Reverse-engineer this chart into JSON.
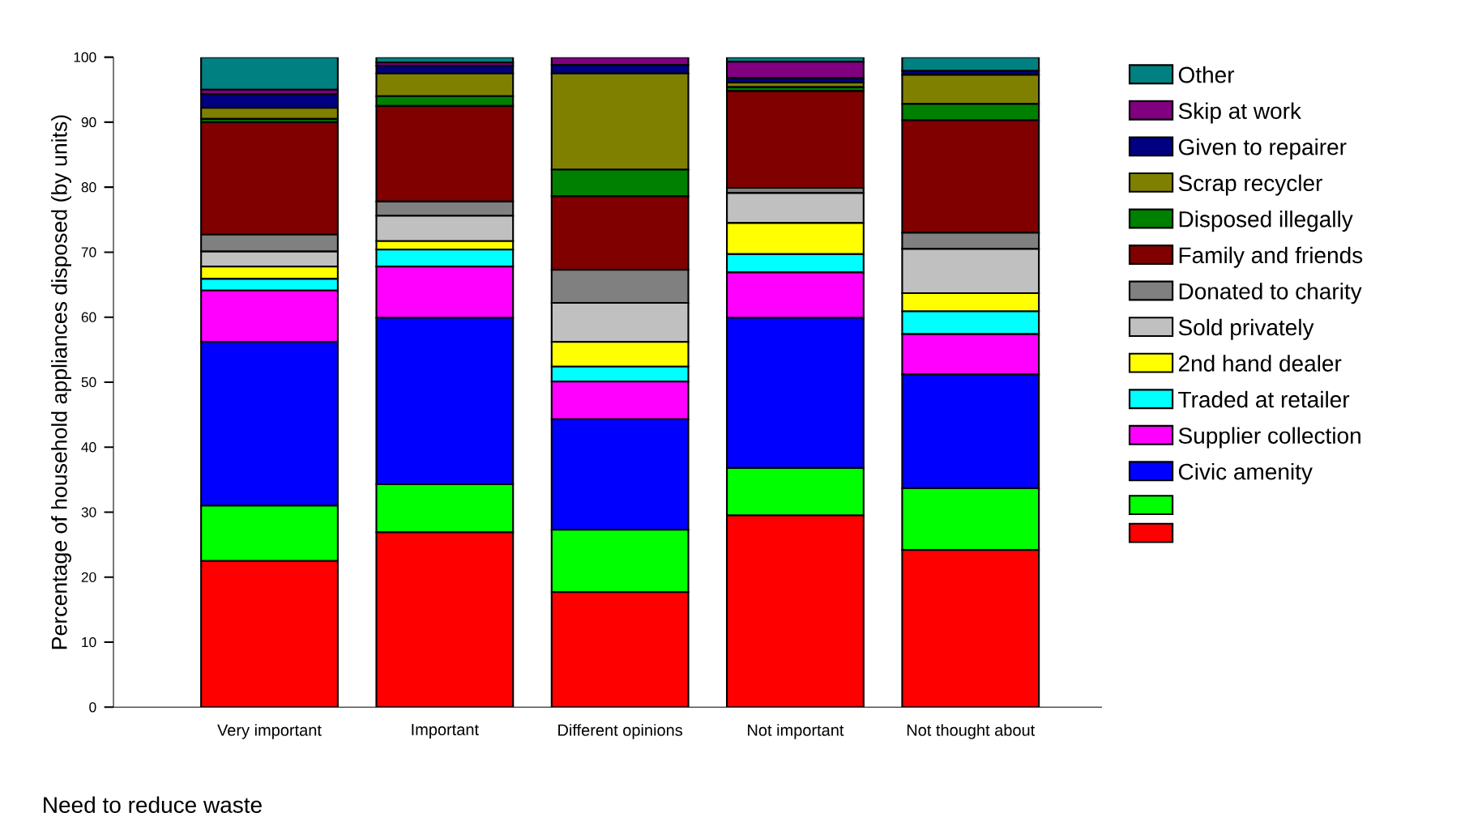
{
  "chart_data": {
    "type": "bar",
    "stacked": true,
    "xlabel": "Need to reduce waste",
    "ylabel": "Percentage of household appliances disposed (by units)",
    "categories": [
      "Very important",
      "Important",
      "Different opinions",
      "Not important",
      "Not thought about"
    ],
    "ylim": [
      0,
      100
    ],
    "yticks": [
      0,
      10,
      20,
      30,
      40,
      50,
      60,
      70,
      80,
      90,
      100
    ],
    "grid": false,
    "legend": "right",
    "series": [
      {
        "color": "#ff0000",
        "values": [
          22.5,
          26.9,
          17.7,
          29.5,
          24.2
        ]
      },
      {
        "color": "#00ff00",
        "values": [
          8.5,
          7.4,
          9.6,
          7.3,
          9.5
        ]
      },
      {
        "name": "Civic amenity",
        "color": "#0000ff",
        "values": [
          25.2,
          25.6,
          17.0,
          23.1,
          17.5
        ]
      },
      {
        "name": "Supplier collection",
        "color": "#ff00ff",
        "values": [
          7.9,
          7.9,
          5.8,
          7.0,
          6.2
        ]
      },
      {
        "name": "Traded at retailer",
        "color": "#00ffff",
        "values": [
          1.8,
          2.6,
          2.3,
          2.8,
          3.5
        ]
      },
      {
        "name": "2nd hand dealer",
        "color": "#ffff00",
        "values": [
          1.9,
          1.3,
          3.8,
          4.8,
          2.8
        ]
      },
      {
        "name": "Sold privately",
        "color": "#c0c0c0",
        "values": [
          2.3,
          3.9,
          6.0,
          4.6,
          6.8
        ]
      },
      {
        "name": "Donated to charity",
        "color": "#808080",
        "values": [
          2.6,
          2.2,
          5.1,
          0.8,
          2.5
        ]
      },
      {
        "name": "Family and friends",
        "color": "#800000",
        "values": [
          17.3,
          14.7,
          11.3,
          14.9,
          17.3
        ]
      },
      {
        "name": "Disposed illegally",
        "color": "#008000",
        "values": [
          0.5,
          1.5,
          4.1,
          0.6,
          2.5
        ]
      },
      {
        "name": "Scrap recycler",
        "color": "#808000",
        "values": [
          1.7,
          3.5,
          14.8,
          0.7,
          4.5
        ]
      },
      {
        "name": "Given to repairer",
        "color": "#000080",
        "values": [
          2.1,
          1.2,
          1.3,
          0.7,
          0.6
        ]
      },
      {
        "name": "Skip at work",
        "color": "#800080",
        "values": [
          0.7,
          0.5,
          1.2,
          2.5,
          null
        ]
      },
      {
        "name": "Other",
        "color": "#008080",
        "values": [
          5.0,
          0.8,
          null,
          0.7,
          2.1
        ]
      }
    ]
  }
}
